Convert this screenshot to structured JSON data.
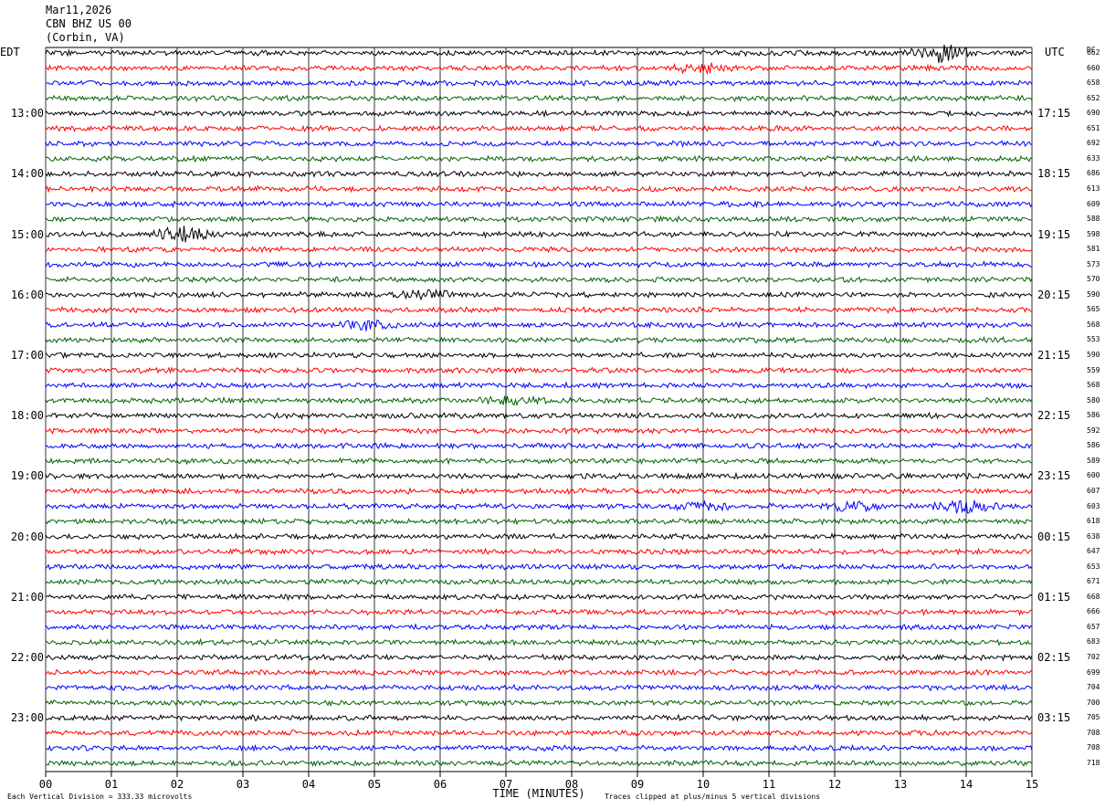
{
  "header": {
    "date": "Mar11,2026",
    "station": "CBN BHZ US 00",
    "location": "(Corbin, VA)"
  },
  "left_axis_label": "EDT",
  "right_axis_label": "UTC",
  "dc_label": "DC",
  "colors": {
    "cycle": [
      "#000000",
      "#ff0000",
      "#0000ff",
      "#006400"
    ],
    "grid": "#000000"
  },
  "chart_data": {
    "type": "line",
    "title": "",
    "xlabel": "TIME (MINUTES)",
    "xlim": [
      0,
      15
    ],
    "x_ticks": [
      "00",
      "01",
      "02",
      "03",
      "04",
      "05",
      "06",
      "07",
      "08",
      "09",
      "10",
      "11",
      "12",
      "13",
      "14",
      "15"
    ],
    "rows_per_hour": 4,
    "row_count": 48,
    "left_hour_labels": [
      "13:00",
      "14:00",
      "15:00",
      "16:00",
      "17:00",
      "18:00",
      "19:00",
      "20:00",
      "21:00",
      "22:00",
      "23:00"
    ],
    "right_hour_labels": [
      "17:15",
      "18:15",
      "19:15",
      "20:15",
      "21:15",
      "22:15",
      "23:15",
      "00:15",
      "01:15",
      "02:15",
      "03:15"
    ],
    "dc_values": [
      "662",
      "660",
      "658",
      "652",
      "690",
      "651",
      "692",
      "633",
      "686",
      "613",
      "609",
      "588",
      "598",
      "581",
      "573",
      "570",
      "590",
      "565",
      "568",
      "553",
      "590",
      "559",
      "568",
      "580",
      "586",
      "592",
      "586",
      "589",
      "600",
      "607",
      "603",
      "618",
      "638",
      "647",
      "653",
      "671",
      "668",
      "666",
      "657",
      "683",
      "702",
      "699",
      "704",
      "700",
      "705",
      "708",
      "708",
      "718"
    ],
    "events": [
      {
        "row": 0,
        "minute": 13.6,
        "amp": 3.0
      },
      {
        "row": 1,
        "minute": 10.0,
        "amp": 1.6
      },
      {
        "row": 12,
        "minute": 2.1,
        "amp": 2.2
      },
      {
        "row": 16,
        "minute": 5.8,
        "amp": 1.5
      },
      {
        "row": 18,
        "minute": 4.9,
        "amp": 1.3
      },
      {
        "row": 23,
        "minute": 7.1,
        "amp": 1.4
      },
      {
        "row": 30,
        "minute": 14.0,
        "amp": 2.0
      },
      {
        "row": 30,
        "minute": 12.3,
        "amp": 1.5
      },
      {
        "row": 30,
        "minute": 10.0,
        "amp": 1.2
      }
    ]
  },
  "footer": {
    "scale_note": "Each Vertical Division =  333.33 microvolts",
    "clip_note": "Traces clipped at plus/minus 5 vertical divisions"
  }
}
